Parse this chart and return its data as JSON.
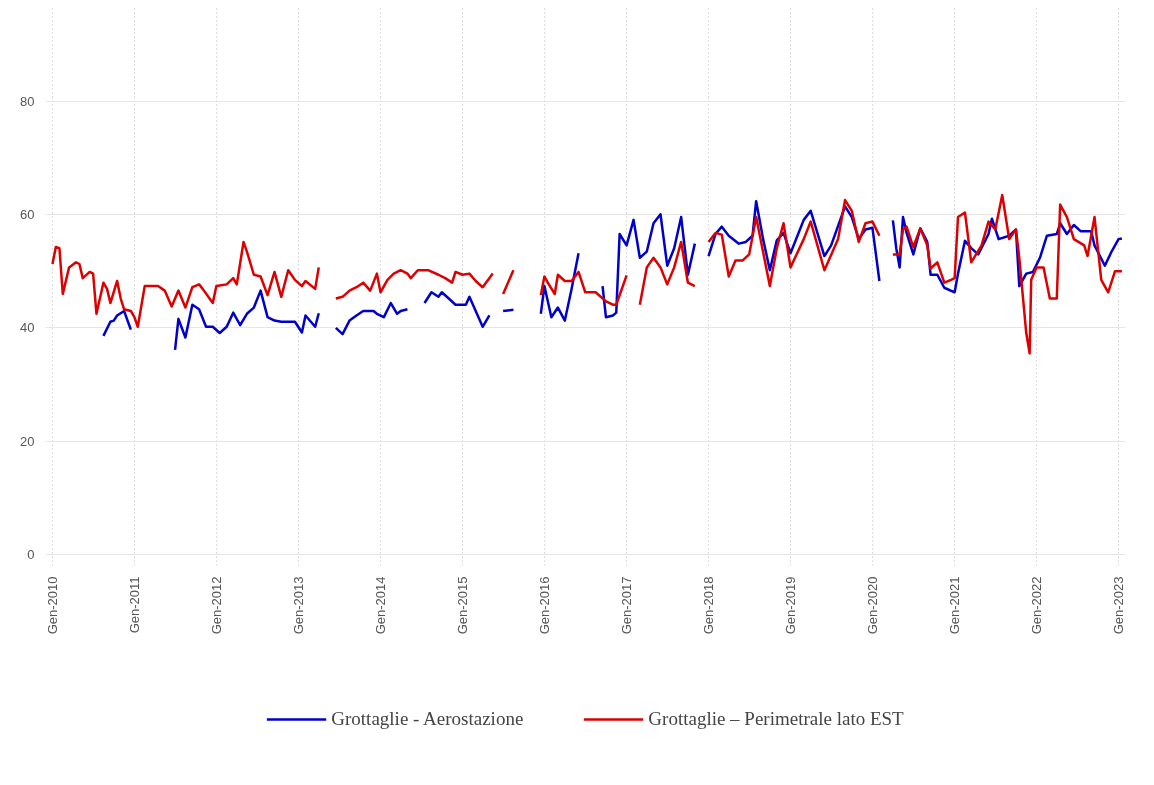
{
  "chart_data": {
    "type": "line",
    "xlim": [
      "2009-12-01",
      "2023-02-01"
    ],
    "ylim": [
      -2,
      97
    ],
    "xticks": [
      {
        "value": "2010-01",
        "label": "Gen-2010"
      },
      {
        "value": "2011-01",
        "label": "Gen-2011"
      },
      {
        "value": "2012-01",
        "label": "Gen-2012"
      },
      {
        "value": "2013-01",
        "label": "Gen-2013"
      },
      {
        "value": "2014-01",
        "label": "Gen-2014"
      },
      {
        "value": "2015-01",
        "label": "Gen-2015"
      },
      {
        "value": "2016-01",
        "label": "Gen-2016"
      },
      {
        "value": "2017-01",
        "label": "Gen-2017"
      },
      {
        "value": "2018-01",
        "label": "Gen-2018"
      },
      {
        "value": "2019-01",
        "label": "Gen-2019"
      },
      {
        "value": "2020-01",
        "label": "Gen-2020"
      },
      {
        "value": "2021-01",
        "label": "Gen-2021"
      },
      {
        "value": "2022-01",
        "label": "Gen-2022"
      },
      {
        "value": "2023-01",
        "label": "Gen-2023"
      }
    ],
    "yticks": [
      0,
      20,
      40,
      60,
      80
    ],
    "grid": true,
    "legend": "bottom",
    "line_style": "solid",
    "series": [
      {
        "name": "Grottaglie - Aerostazione",
        "color": "#0000cc",
        "x": [
          "2010-08-16",
          "2010-09-16",
          "2010-10-01",
          "2010-10-16",
          "2010-11-16",
          "2010-12-16",
          "2011-03-16",
          "2011-07-01",
          "2011-07-16",
          "2011-08-16",
          "2011-09-16",
          "2011-10-16",
          "2011-11-16",
          "2011-12-16",
          "2012-01-16",
          "2012-02-16",
          "2012-03-16",
          "2012-04-16",
          "2012-05-16",
          "2012-06-16",
          "2012-07-16",
          "2012-08-16",
          "2012-09-16",
          "2012-10-16",
          "2012-12-16",
          "2013-01-16",
          "2013-02-01",
          "2013-03-16",
          "2013-04-01",
          "2013-05-16",
          "2013-06-16",
          "2013-07-16",
          "2013-08-16",
          "2013-09-16",
          "2013-10-16",
          "2013-12-01",
          "2013-12-16",
          "2014-01-16",
          "2014-02-16",
          "2014-03-16",
          "2014-04-01",
          "2014-05-01",
          "2014-06-16",
          "2014-07-16",
          "2014-08-16",
          "2014-09-16",
          "2014-10-01",
          "2014-11-01",
          "2014-12-01",
          "2015-01-16",
          "2015-02-01",
          "2015-03-01",
          "2015-04-01",
          "2015-05-01",
          "2015-06-16",
          "2015-07-01",
          "2015-08-16",
          "2015-10-16",
          "2015-12-16",
          "2016-01-01",
          "2016-02-01",
          "2016-03-01",
          "2016-04-01",
          "2016-05-01",
          "2016-06-01",
          "2016-07-16",
          "2016-09-16",
          "2016-10-01",
          "2016-11-01",
          "2016-11-16",
          "2016-12-01",
          "2017-01-01",
          "2017-02-01",
          "2017-03-01",
          "2017-04-01",
          "2017-05-01",
          "2017-06-01",
          "2017-07-01",
          "2017-08-01",
          "2017-09-01",
          "2017-10-01",
          "2017-11-01",
          "2017-12-01",
          "2018-01-01",
          "2018-02-01",
          "2018-03-01",
          "2018-04-01",
          "2018-05-16",
          "2018-06-16",
          "2018-07-16",
          "2018-08-01",
          "2018-09-01",
          "2018-10-01",
          "2018-11-01",
          "2018-12-01",
          "2019-01-01",
          "2019-03-01",
          "2019-04-01",
          "2019-06-01",
          "2019-07-01",
          "2019-09-01",
          "2019-10-01",
          "2019-11-01",
          "2019-12-01",
          "2020-01-01",
          "2020-02-01",
          "2020-03-01",
          "2020-04-01",
          "2020-04-16",
          "2020-05-01",
          "2020-05-16",
          "2020-06-01",
          "2020-07-01",
          "2020-08-01",
          "2020-09-01",
          "2020-09-16",
          "2020-10-16",
          "2020-11-16",
          "2021-01-01",
          "2021-01-16",
          "2021-02-16",
          "2021-03-16",
          "2021-04-16",
          "2021-06-01",
          "2021-06-16",
          "2021-07-16",
          "2021-09-01",
          "2021-10-01",
          "2021-10-16",
          "2021-11-16",
          "2021-12-16",
          "2022-01-16",
          "2022-02-16",
          "2022-04-01",
          "2022-04-16",
          "2022-05-16",
          "2022-06-16",
          "2022-07-16",
          "2022-09-01",
          "2022-09-16",
          "2022-11-01",
          "2022-12-01",
          "2023-01-01",
          "2023-01-16"
        ],
        "values": [
          38.6,
          41.1,
          41.3,
          42.2,
          43.0,
          39.7,
          null,
          36.1,
          41.6,
          38.3,
          44.1,
          43.3,
          40.2,
          40.2,
          39.1,
          40.2,
          42.7,
          40.5,
          42.5,
          43.6,
          46.6,
          41.9,
          41.3,
          41.1,
          41.1,
          39.2,
          42.2,
          40.2,
          42.6,
          null,
          40.0,
          38.9,
          41.3,
          42.2,
          43.0,
          43.0,
          42.5,
          41.9,
          44.4,
          42.5,
          43.0,
          43.3,
          null,
          44.4,
          46.3,
          45.5,
          46.3,
          45.2,
          44.1,
          44.1,
          45.5,
          43.0,
          40.2,
          42.2,
          null,
          43.0,
          43.2,
          null,
          42.5,
          47.4,
          41.9,
          43.6,
          41.3,
          46.9,
          53.2,
          null,
          47.4,
          41.9,
          42.2,
          42.7,
          56.6,
          54.6,
          59.1,
          52.4,
          53.5,
          58.5,
          60.1,
          51.0,
          54.1,
          59.6,
          49.4,
          54.9,
          null,
          52.7,
          56.6,
          57.9,
          56.3,
          54.9,
          55.2,
          56.3,
          62.4,
          55.7,
          50.2,
          55.5,
          56.8,
          53.2,
          59.1,
          60.7,
          52.7,
          54.6,
          61.5,
          59.6,
          55.7,
          57.4,
          57.7,
          48.3,
          null,
          59.0,
          54.1,
          50.7,
          59.6,
          56.8,
          53.0,
          57.6,
          55.2,
          49.4,
          49.4,
          47.1,
          46.3,
          49.6,
          55.4,
          54.1,
          53.0,
          56.6,
          59.3,
          55.7,
          56.3,
          57.4,
          47.4,
          49.6,
          49.9,
          52.4,
          56.3,
          56.6,
          58.5,
          56.6,
          58.2,
          57.1,
          57.1,
          54.6,
          51.0,
          53.5,
          55.7,
          55.8
        ]
      },
      {
        "name": "Grottaglie – Perimetrale lato EST",
        "color": "#dd0000",
        "x": [
          "2010-01-01",
          "2010-01-16",
          "2010-02-01",
          "2010-02-16",
          "2010-03-16",
          "2010-04-16",
          "2010-05-01",
          "2010-05-16",
          "2010-06-16",
          "2010-07-01",
          "2010-07-16",
          "2010-08-16",
          "2010-09-01",
          "2010-09-16",
          "2010-10-16",
          "2010-11-01",
          "2010-11-16",
          "2010-12-16",
          "2011-01-01",
          "2011-01-16",
          "2011-02-16",
          "2011-04-01",
          "2011-04-16",
          "2011-05-16",
          "2011-06-16",
          "2011-07-16",
          "2011-08-16",
          "2011-09-16",
          "2011-10-16",
          "2011-11-01",
          "2011-12-16",
          "2012-01-01",
          "2012-02-16",
          "2012-03-16",
          "2012-04-01",
          "2012-05-01",
          "2012-05-16",
          "2012-06-16",
          "2012-07-16",
          "2012-08-16",
          "2012-09-16",
          "2012-10-16",
          "2012-11-16",
          "2012-12-16",
          "2013-01-16",
          "2013-02-01",
          "2013-03-16",
          "2013-04-01",
          "2013-05-16",
          "2013-06-16",
          "2013-07-16",
          "2013-08-16",
          "2013-09-16",
          "2013-10-16",
          "2013-11-16",
          "2013-12-16",
          "2014-01-01",
          "2014-02-01",
          "2014-03-01",
          "2014-04-01",
          "2014-05-01",
          "2014-05-16",
          "2014-06-16",
          "2014-08-01",
          "2014-09-16",
          "2014-10-16",
          "2014-11-16",
          "2014-12-01",
          "2015-01-01",
          "2015-02-01",
          "2015-03-01",
          "2015-04-01",
          "2015-05-16",
          "2015-06-16",
          "2015-07-01",
          "2015-08-16",
          "2015-10-16",
          "2015-12-16",
          "2016-01-01",
          "2016-01-16",
          "2016-02-16",
          "2016-03-01",
          "2016-04-01",
          "2016-05-01",
          "2016-06-01",
          "2016-07-01",
          "2016-08-16",
          "2016-10-01",
          "2016-11-01",
          "2016-11-16",
          "2017-01-01",
          "2017-02-01",
          "2017-03-01",
          "2017-04-01",
          "2017-05-01",
          "2017-06-01",
          "2017-07-01",
          "2017-08-01",
          "2017-09-01",
          "2017-10-01",
          "2017-11-01",
          "2017-12-01",
          "2018-01-01",
          "2018-02-01",
          "2018-03-01",
          "2018-04-01",
          "2018-05-01",
          "2018-06-01",
          "2018-07-01",
          "2018-08-01",
          "2018-10-01",
          "2018-11-01",
          "2018-12-01",
          "2019-01-01",
          "2019-03-01",
          "2019-04-01",
          "2019-06-01",
          "2019-08-01",
          "2019-09-01",
          "2019-10-01",
          "2019-11-01",
          "2019-12-01",
          "2020-01-01",
          "2020-02-01",
          "2020-03-01",
          "2020-04-01",
          "2020-05-01",
          "2020-05-16",
          "2020-06-01",
          "2020-07-01",
          "2020-08-01",
          "2020-09-01",
          "2020-09-16",
          "2020-10-16",
          "2020-11-16",
          "2020-12-16",
          "2021-01-01",
          "2021-01-16",
          "2021-02-16",
          "2021-03-16",
          "2021-05-01",
          "2021-06-01",
          "2021-07-01",
          "2021-08-01",
          "2021-09-01",
          "2021-10-01",
          "2021-10-16",
          "2021-11-16",
          "2021-12-01",
          "2021-12-08",
          "2022-01-01",
          "2022-02-01",
          "2022-03-01",
          "2022-04-01",
          "2022-04-16",
          "2022-05-16",
          "2022-06-16",
          "2022-08-01",
          "2022-08-16",
          "2022-09-16",
          "2022-10-16",
          "2022-11-16",
          "2022-12-16",
          "2023-01-16"
        ],
        "values": [
          51.3,
          54.3,
          54.1,
          46.0,
          50.7,
          51.6,
          51.3,
          48.8,
          49.9,
          49.6,
          42.5,
          48.0,
          46.9,
          44.4,
          48.3,
          45.2,
          43.3,
          43.0,
          41.9,
          40.2,
          47.4,
          47.4,
          47.4,
          46.6,
          43.8,
          46.6,
          43.6,
          47.2,
          47.7,
          46.9,
          44.4,
          47.4,
          47.7,
          48.8,
          47.7,
          55.2,
          53.5,
          49.4,
          49.1,
          45.8,
          49.9,
          45.5,
          50.2,
          48.5,
          47.4,
          48.3,
          46.9,
          50.7,
          null,
          45.2,
          45.5,
          46.6,
          47.2,
          48.0,
          46.6,
          49.6,
          46.3,
          48.5,
          49.6,
          50.2,
          49.6,
          48.8,
          50.2,
          50.2,
          49.4,
          48.8,
          48.0,
          49.9,
          49.4,
          49.6,
          48.3,
          47.2,
          49.6,
          null,
          46.0,
          50.2,
          null,
          45.8,
          49.1,
          48.0,
          46.0,
          49.4,
          48.3,
          48.3,
          49.9,
          46.3,
          46.3,
          44.7,
          44.1,
          44.1,
          49.3,
          null,
          44.1,
          50.7,
          52.4,
          50.7,
          47.7,
          50.7,
          55.2,
          48.0,
          47.4,
          null,
          55.2,
          56.8,
          56.5,
          49.1,
          51.9,
          51.9,
          53.0,
          59.6,
          47.4,
          54.1,
          58.5,
          50.7,
          55.7,
          58.8,
          50.2,
          55.7,
          62.6,
          60.7,
          55.2,
          58.5,
          58.8,
          56.3,
          null,
          53.0,
          53.0,
          57.4,
          57.9,
          54.3,
          57.6,
          54.6,
          50.5,
          51.6,
          48.0,
          48.5,
          48.8,
          59.6,
          60.4,
          51.6,
          54.6,
          58.8,
          57.4,
          63.5,
          55.7,
          57.4,
          52.4,
          39.1,
          35.5,
          48.5,
          50.7,
          50.7,
          45.2,
          45.2,
          61.8,
          59.6,
          55.7,
          54.6,
          52.7,
          59.6,
          48.5,
          46.3,
          50.0,
          50.0
        ]
      }
    ]
  }
}
